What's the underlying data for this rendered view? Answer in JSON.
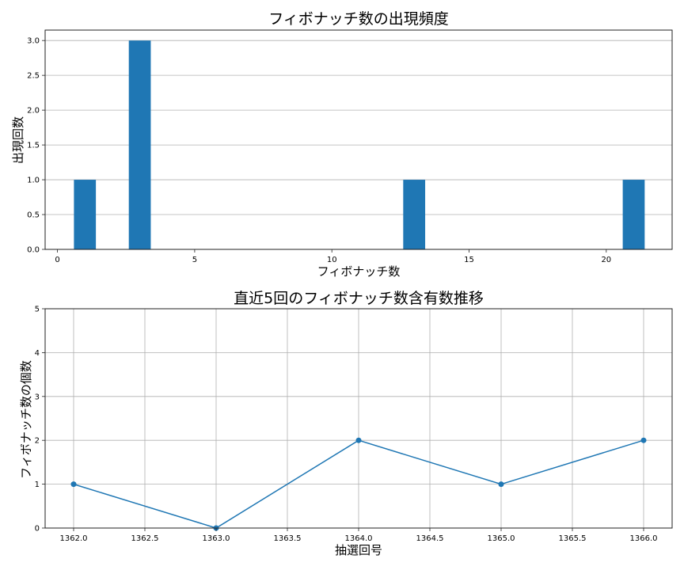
{
  "chart_data": [
    {
      "type": "bar",
      "title": "フィボナッチ数の出現頻度",
      "xlabel": "フィボナッチ数",
      "ylabel": "出現回数",
      "x": [
        1,
        3,
        13,
        21
      ],
      "values": [
        1,
        3,
        1,
        1
      ],
      "bar_width": 0.8,
      "xlim": [
        -0.45,
        22.4
      ],
      "ylim": [
        0,
        3.15
      ],
      "xticks": [
        "0",
        "5",
        "10",
        "15",
        "20"
      ],
      "yticks": [
        "0.0",
        "0.5",
        "1.0",
        "1.5",
        "2.0",
        "2.5",
        "3.0"
      ],
      "grid": "y",
      "color": "#1f77b4"
    },
    {
      "type": "line",
      "title": "直近5回のフィボナッチ数含有数推移",
      "xlabel": "抽選回号",
      "ylabel": "フィボナッチ数の個数",
      "x": [
        1362,
        1363,
        1364,
        1365,
        1366
      ],
      "values": [
        1,
        0,
        2,
        1,
        2
      ],
      "xlim": [
        1361.8,
        1366.2
      ],
      "ylim": [
        0,
        5
      ],
      "xticks": [
        "1362.0",
        "1362.5",
        "1363.0",
        "1363.5",
        "1364.0",
        "1364.5",
        "1365.0",
        "1365.5",
        "1366.0"
      ],
      "yticks": [
        "0",
        "1",
        "2",
        "3",
        "4",
        "5"
      ],
      "grid": "both",
      "marker": "o",
      "color": "#1f77b4"
    }
  ]
}
